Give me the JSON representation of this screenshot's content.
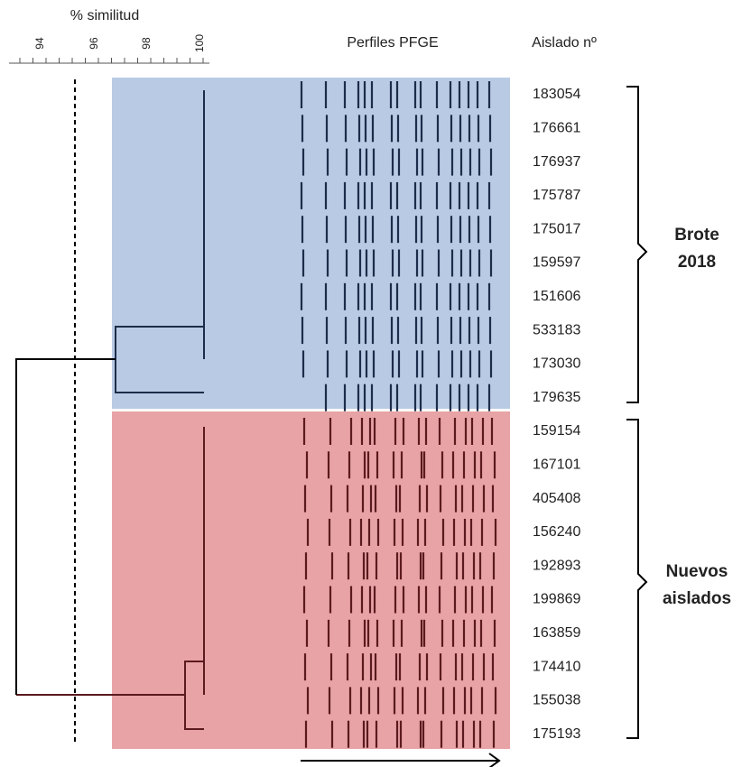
{
  "axis": {
    "title": "% similitud",
    "ticks": [
      "94",
      "96",
      "98",
      "100"
    ]
  },
  "profiles_header": "Perfiles PFGE",
  "isolate_header": "Aislado nº",
  "groups": [
    {
      "label_lines": [
        "Brote",
        "2018"
      ],
      "isolates": [
        "183054",
        "176661",
        "176937",
        "175787",
        "175017",
        "159597",
        "151606",
        "533183",
        "173030",
        "179635"
      ]
    },
    {
      "label_lines": [
        "Nuevos",
        "aislados"
      ],
      "isolates": [
        "159154",
        "167101",
        "405408",
        "156240",
        "192893",
        "199869",
        "163859",
        "174410",
        "155038",
        "175193"
      ]
    }
  ]
}
